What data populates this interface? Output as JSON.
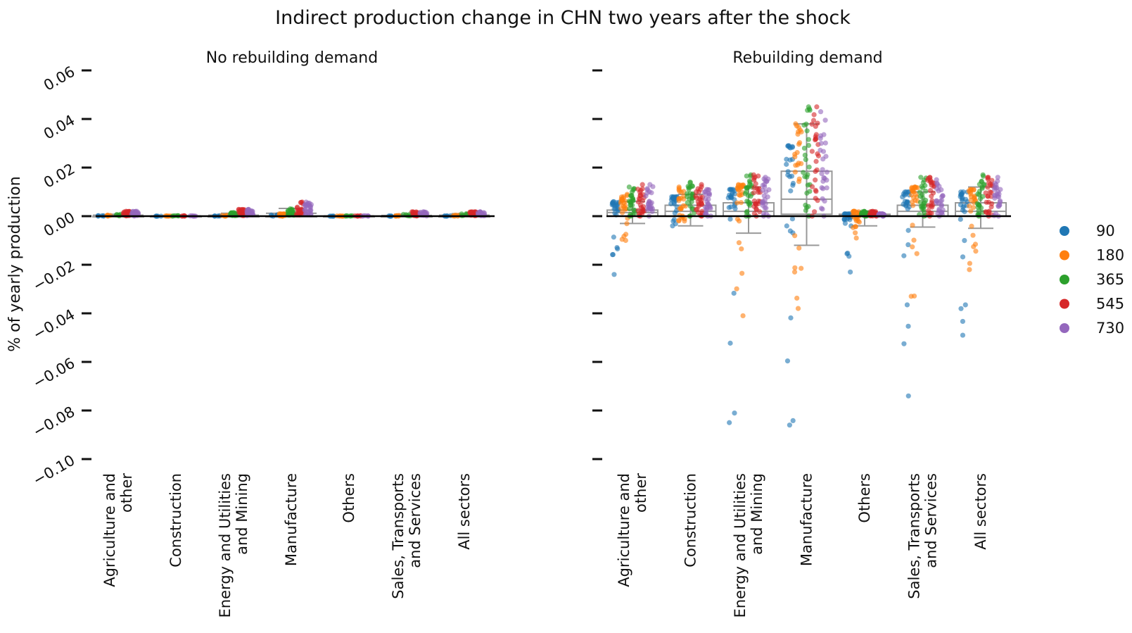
{
  "title": "Indirect production change in CHN two years after the shock",
  "ylabel": "% of yearly production",
  "legend": {
    "position": "right",
    "items": [
      {
        "label": "90",
        "color": "#1f77b4"
      },
      {
        "label": "180",
        "color": "#ff7f0e"
      },
      {
        "label": "365",
        "color": "#2ca02c"
      },
      {
        "label": "545",
        "color": "#d62728"
      },
      {
        "label": "730",
        "color": "#9467bd"
      }
    ]
  },
  "categories": [
    [
      "Agriculture and",
      "other"
    ],
    [
      "Construction"
    ],
    [
      "Energy and Utilities",
      "and Mining"
    ],
    [
      "Manufacture"
    ],
    [
      "Others"
    ],
    [
      "Sales, Transports",
      "and Services"
    ],
    [
      "All sectors"
    ]
  ],
  "yticks": [
    "0.06",
    "0.04",
    "0.02",
    "0.00",
    "−0.02",
    "−0.04",
    "−0.06",
    "−0.08",
    "−0.10"
  ],
  "chart_data": [
    {
      "type": "scatter",
      "subtitle": "No rebuilding demand",
      "ylim": [
        -0.1,
        0.06
      ],
      "grid": false,
      "series": [
        {
          "name": "90",
          "values": [
            [
              0.0,
              0.0002
            ],
            [
              0.0,
              0.0
            ],
            [
              0.0,
              0.0001
            ],
            [
              0.0,
              0.0005
            ],
            [
              0.0,
              0.0
            ],
            [
              0.0,
              0.0001
            ],
            [
              0.0,
              0.0002
            ]
          ]
        },
        {
          "name": "180",
          "values": [
            [
              0.0,
              0.0004
            ],
            [
              0.0,
              0.0001
            ],
            [
              0.0,
              0.0004
            ],
            [
              0.0,
              0.001
            ],
            [
              0.0,
              0.0001
            ],
            [
              0.0,
              0.0003
            ],
            [
              0.0,
              0.0004
            ]
          ]
        },
        {
          "name": "365",
          "values": [
            [
              0.0001,
              0.0008
            ],
            [
              0.0,
              0.0002
            ],
            [
              0.0002,
              0.0015
            ],
            [
              0.0004,
              0.003
            ],
            [
              0.0,
              0.0002
            ],
            [
              0.0001,
              0.0008
            ],
            [
              0.0002,
              0.001
            ]
          ]
        },
        {
          "name": "545",
          "values": [
            [
              0.0001,
              0.002
            ],
            [
              0.0,
              0.0002
            ],
            [
              0.0002,
              0.0028
            ],
            [
              0.0005,
              0.0058
            ],
            [
              0.0,
              0.0002
            ],
            [
              0.0001,
              0.0018
            ],
            [
              0.0002,
              0.0018
            ]
          ]
        },
        {
          "name": "730",
          "values": [
            [
              0.0001,
              0.002
            ],
            [
              0.0,
              0.0002
            ],
            [
              0.0002,
              0.0028
            ],
            [
              0.0005,
              0.0058
            ],
            [
              0.0,
              0.0002
            ],
            [
              0.0001,
              0.0018
            ],
            [
              0.0002,
              0.0018
            ]
          ]
        }
      ],
      "boxes": [
        [
          0.0,
          0.0,
          0.0004,
          0.0,
          0.0008
        ],
        [
          0.0,
          0.0,
          0.0001,
          0.0,
          0.0002
        ],
        [
          0.0,
          0.0,
          0.0004,
          0.0,
          0.0012
        ],
        [
          0.0,
          0.0002,
          0.0012,
          0.0,
          0.0032
        ],
        [
          0.0,
          0.0,
          0.0001,
          0.0,
          0.0002
        ],
        [
          0.0,
          0.0,
          0.0003,
          0.0,
          0.0008
        ],
        [
          0.0,
          0.0,
          0.0004,
          0.0,
          0.001
        ]
      ]
    },
    {
      "type": "scatter",
      "subtitle": "Rebuilding demand",
      "ylim": [
        -0.1,
        0.06
      ],
      "grid": false,
      "series": [
        {
          "name": "90",
          "values": [
            [
              -0.024,
              0.006
            ],
            [
              -0.004,
              0.008
            ],
            [
              -0.085,
              0.011
            ],
            [
              -0.086,
              0.029
            ],
            [
              -0.023,
              0.001
            ],
            [
              -0.074,
              0.01
            ],
            [
              -0.049,
              0.01
            ]
          ]
        },
        {
          "name": "180",
          "values": [
            [
              -0.01,
              0.009
            ],
            [
              -0.002,
              0.012
            ],
            [
              -0.041,
              0.013
            ],
            [
              -0.038,
              0.038
            ],
            [
              -0.009,
              0.002
            ],
            [
              -0.033,
              0.012
            ],
            [
              -0.022,
              0.011
            ]
          ]
        },
        {
          "name": "365",
          "values": [
            [
              0.0,
              0.012
            ],
            [
              0.0,
              0.014
            ],
            [
              0.0,
              0.017
            ],
            [
              0.0,
              0.045
            ],
            [
              0.0,
              0.002
            ],
            [
              0.0,
              0.016
            ],
            [
              0.0,
              0.017
            ]
          ]
        },
        {
          "name": "545",
          "values": [
            [
              0.0,
              0.013
            ],
            [
              0.0,
              0.013
            ],
            [
              0.0,
              0.017
            ],
            [
              0.0,
              0.045
            ],
            [
              0.0,
              0.002
            ],
            [
              0.0,
              0.016
            ],
            [
              0.0,
              0.016
            ]
          ]
        },
        {
          "name": "730",
          "values": [
            [
              0.0,
              0.013
            ],
            [
              0.0,
              0.011
            ],
            [
              0.0,
              0.016
            ],
            [
              0.0,
              0.043
            ],
            [
              0.0,
              0.001
            ],
            [
              0.0,
              0.015
            ],
            [
              0.0,
              0.016
            ]
          ]
        }
      ],
      "boxes": [
        [
          -0.003,
          0.0,
          0.0015,
          0.0025,
          0.006
        ],
        [
          -0.004,
          0.0,
          0.002,
          0.0045,
          0.009
        ],
        [
          -0.007,
          0.0,
          0.002,
          0.0055,
          0.012
        ],
        [
          -0.012,
          0.0008,
          0.007,
          0.0185,
          0.038
        ],
        [
          -0.004,
          0.0,
          0.0003,
          0.0008,
          0.002
        ],
        [
          -0.0045,
          0.0,
          0.002,
          0.0045,
          0.01
        ],
        [
          -0.005,
          0.0,
          0.002,
          0.0055,
          0.012
        ]
      ]
    }
  ]
}
